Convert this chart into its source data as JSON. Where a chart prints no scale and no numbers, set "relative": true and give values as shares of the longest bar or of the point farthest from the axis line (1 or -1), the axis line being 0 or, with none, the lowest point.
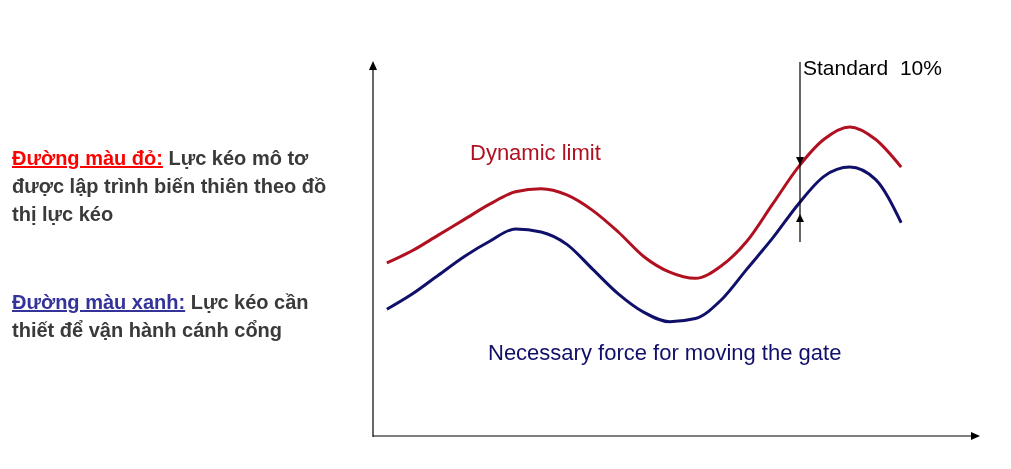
{
  "chart_data": {
    "type": "line",
    "relative": true,
    "categories": [
      null,
      null,
      null,
      null,
      null,
      null,
      null,
      null,
      null,
      null,
      null,
      null,
      null,
      null,
      null,
      null,
      null,
      null,
      null,
      null,
      null
    ],
    "series": [
      {
        "name": "Dynamic limit",
        "color": "#b01020",
        "values": [
          0.56,
          0.6,
          0.65,
          0.7,
          0.75,
          0.79,
          0.8,
          0.78,
          0.73,
          0.66,
          0.58,
          0.53,
          0.51,
          0.55,
          0.63,
          0.75,
          0.87,
          0.96,
          1.0,
          0.96,
          0.87
        ]
      },
      {
        "name": "Necessary force for moving the gate",
        "color": "#10106a",
        "values": [
          0.41,
          0.46,
          0.52,
          0.58,
          0.63,
          0.67,
          0.66,
          0.62,
          0.54,
          0.46,
          0.4,
          0.37,
          0.38,
          0.44,
          0.54,
          0.64,
          0.75,
          0.84,
          0.87,
          0.83,
          0.69
        ]
      }
    ],
    "annotations": [
      "Standard  10%",
      "Đường màu đỏ: Lực kéo mô tơ được lập trình biến thiên theo đồ thị lực kéo",
      "Đường màu xanh: Lực kéo cần thiết để vận hành cánh cổng"
    ],
    "grid": false,
    "legend": false,
    "marker": "none",
    "line_style": "solid"
  }
}
